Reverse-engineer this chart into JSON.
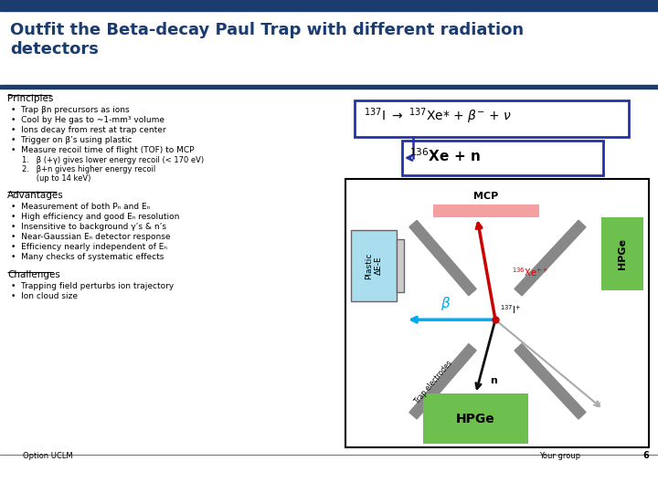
{
  "title": "Outfit the Beta-decay Paul Trap with different radiation\ndetectors",
  "title_color": "#1a3c6e",
  "header_bar_color": "#1a3c6e",
  "slide_bg": "#ffffff",
  "principles_title": "Principles",
  "principles_bullets": [
    "Trap βn precursors as ions",
    "Cool by He gas to ~1-mm³ volume",
    "Ions decay from rest at trap center",
    "Trigger on β’s using plastic",
    "Measure recoil time of flight (TOF) to MCP"
  ],
  "principles_sub": [
    "1.   β (+γ) gives lower energy recoil (< 170 eV)",
    "2.   β+n gives higher energy recoil",
    "      (up to 14 keV)"
  ],
  "advantages_title": "Advantages",
  "advantages_bullets": [
    "Measurement of both Pₙ and Eₙ",
    "High efficiency and good Eₙ resolution",
    "Insensitive to background γ’s & n’s",
    "Near-Gaussian Eₙ detector response",
    "Efficiency nearly independent of Eₙ",
    "Many checks of systematic effects"
  ],
  "challenges_title": "Challenges",
  "challenges_bullets": [
    "Trapping field perturbs ion trajectory",
    "Ion cloud size"
  ],
  "footer_left": "Option UCLM",
  "footer_right": "Your group",
  "footer_page": "6",
  "mcp_color": "#f4a0a0",
  "hpge_color": "#6dbf4e",
  "plastic_color": "#aaddee",
  "electrode_color": "#888888",
  "eq_border_color": "#2233aa",
  "arrow_xe_color": "#cc0000",
  "arrow_beta_color": "#00aaee",
  "arrow_n_color": "#111111",
  "arrow_nu_color": "#aaaaaa"
}
